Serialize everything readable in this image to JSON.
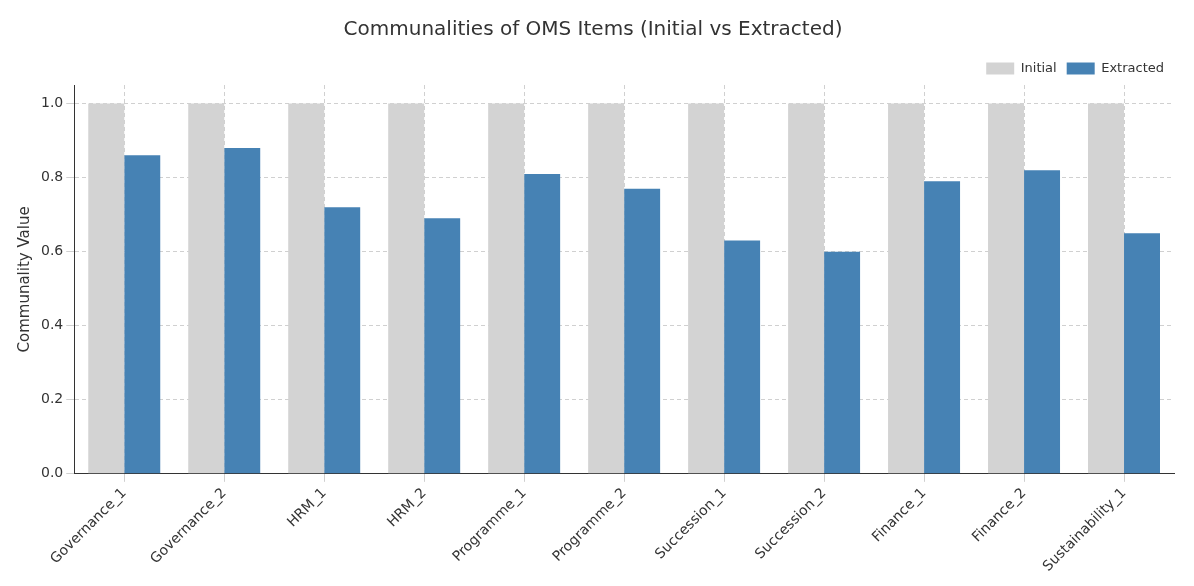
{
  "chart_data": {
    "type": "bar",
    "title": "Communalities of OMS Items (Initial vs Extracted)",
    "ylabel": "Communality Value",
    "categories": [
      "Governance_1",
      "Governance_2",
      "HRM_1",
      "HRM_2",
      "Programme_1",
      "Programme_2",
      "Succession_1",
      "Succession_2",
      "Finance_1",
      "Finance_2",
      "Sustainability_1"
    ],
    "series": [
      {
        "name": "Initial",
        "color": "#d3d3d3",
        "values": [
          1,
          1,
          1,
          1,
          1,
          1,
          1,
          1,
          1,
          1,
          1
        ]
      },
      {
        "name": "Extracted",
        "color": "#4682b4",
        "values": [
          0.86,
          0.88,
          0.72,
          0.69,
          0.81,
          0.77,
          0.63,
          0.6,
          0.79,
          0.82,
          0.65
        ]
      }
    ],
    "ylim": [
      0,
      1.05
    ],
    "yticks": [
      {
        "value": 0,
        "label": "0.0"
      },
      {
        "value": 0.2,
        "label": "0.2"
      },
      {
        "value": 0.4,
        "label": "0.4"
      },
      {
        "value": 0.6,
        "label": "0.6"
      },
      {
        "value": 0.8,
        "label": "0.8"
      },
      {
        "value": 1,
        "label": "1.0"
      }
    ],
    "grid": true,
    "legend": "top right"
  }
}
